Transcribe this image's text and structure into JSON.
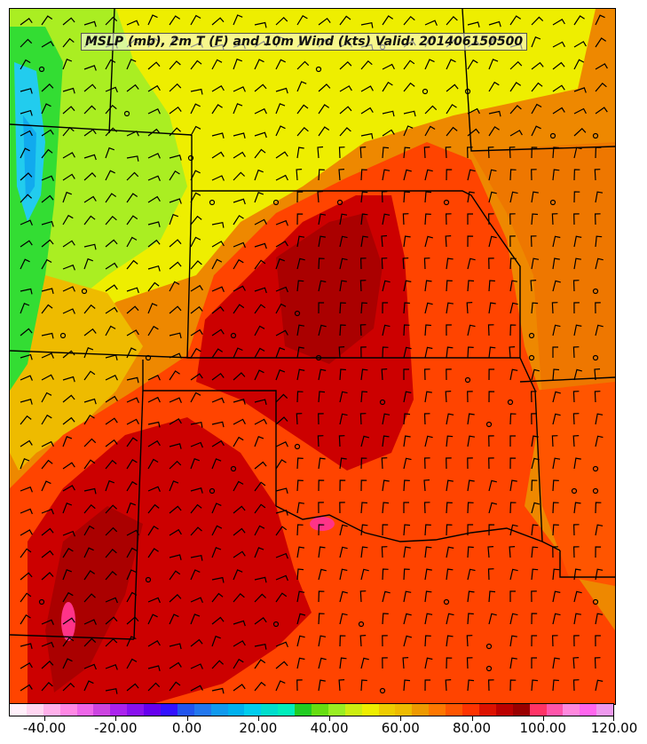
{
  "title": "MSLP (mb), 2m T (F) and 10m Wind (kts) Valid: 201406150500",
  "colorbar": {
    "min": -50,
    "max": 120,
    "step": 5,
    "tick_labels": [
      "-40.00",
      "-20.00",
      "0.00",
      "20.00",
      "40.00",
      "60.00",
      "80.00",
      "100.00",
      "120.00"
    ],
    "colors": [
      "#fff0fa",
      "#ffd6f2",
      "#ffb0ea",
      "#ff88e4",
      "#ee66e8",
      "#cc44e0",
      "#aa22ee",
      "#8811ee",
      "#6600ee",
      "#3311ff",
      "#2255ee",
      "#2277ee",
      "#1199ee",
      "#00b0ee",
      "#00ccee",
      "#00ddcc",
      "#00eebb",
      "#22cc22",
      "#66dd11",
      "#99ee22",
      "#ccee11",
      "#eeee00",
      "#eecc00",
      "#eebb00",
      "#ee9900",
      "#ff7700",
      "#ff5500",
      "#ff3300",
      "#dd1100",
      "#bb0000",
      "#990000",
      "#ff3366",
      "#ff55aa",
      "#ff88dd",
      "#ff66ee",
      "#ee99ee"
    ]
  },
  "map": {
    "field": "2m temperature",
    "units": "F",
    "wind_barbs": true,
    "pressure_contours": false,
    "state_boundaries": true
  }
}
